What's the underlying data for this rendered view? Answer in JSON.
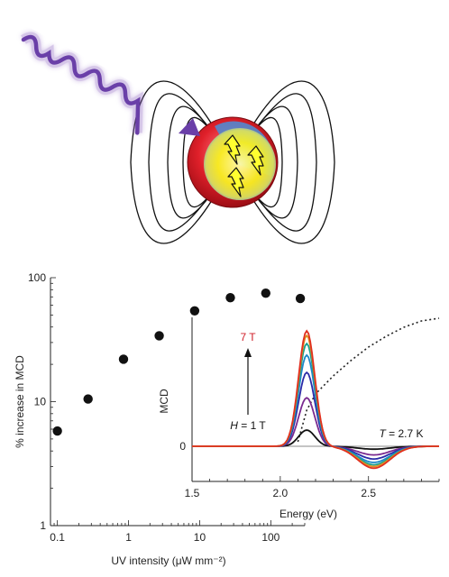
{
  "illustration": {
    "description_icons": [
      "uv-wave-icon",
      "magnetic-field-lines-icon",
      "nanocrystal-sphere-icon",
      "spin-arrow-icon"
    ]
  },
  "chart_data": [
    {
      "type": "scatter",
      "xlabel": "UV intensity (μW mm⁻²)",
      "ylabel": "% increase in MCD",
      "xscale": "log",
      "yscale": "log",
      "xlim": [
        0.08,
        300
      ],
      "ylim": [
        1,
        100
      ],
      "x_ticks": [
        0.1,
        1,
        10,
        100
      ],
      "x_tick_labels": [
        "0.1",
        "1",
        "10",
        "100"
      ],
      "y_ticks": [
        1,
        10,
        100
      ],
      "y_tick_labels": [
        "1",
        "10",
        "100"
      ],
      "x": [
        0.1,
        0.27,
        0.85,
        2.7,
        8.5,
        27,
        85,
        260
      ],
      "y": [
        5.8,
        10.5,
        22,
        34,
        54,
        69,
        75,
        68
      ],
      "color": "#111111"
    },
    {
      "type": "line",
      "xlabel": "Energy (eV)",
      "ylabel": "MCD",
      "xlim": [
        1.5,
        2.9
      ],
      "x_ticks": [
        1.5,
        2.0,
        2.5
      ],
      "x_tick_labels": [
        "1.5",
        "2.0",
        "2.5"
      ],
      "y_tick_labels": [
        "0"
      ],
      "annotations": {
        "top_field": "7 T",
        "bottom_field_var": "H",
        "bottom_field_value": " = 1 T",
        "temp_var": "T",
        "temp_value": " = 2.7 K"
      },
      "series": [
        {
          "field": 1,
          "color": "#111111",
          "peak": 0.14,
          "dip": -0.025
        },
        {
          "field": 2,
          "color": "#7a2a90",
          "peak": 0.42,
          "dip": -0.075
        },
        {
          "field": 3,
          "color": "#2b2ba8",
          "peak": 0.64,
          "dip": -0.11
        },
        {
          "field": 4,
          "color": "#1e88c8",
          "peak": 0.79,
          "dip": -0.14
        },
        {
          "field": 5,
          "color": "#18a08c",
          "peak": 0.89,
          "dip": -0.16
        },
        {
          "field": 6,
          "color": "#e09020",
          "peak": 0.96,
          "dip": -0.175
        },
        {
          "field": 7,
          "color": "#e03020",
          "peak": 1.0,
          "dip": -0.19
        }
      ],
      "dotted_absorption": {
        "color": "#222222",
        "x": [
          2.1,
          2.15,
          2.2,
          2.3,
          2.4,
          2.5,
          2.6,
          2.7,
          2.8,
          2.9
        ],
        "y": [
          0.05,
          0.4,
          0.58,
          0.78,
          0.95,
          1.1,
          1.22,
          1.32,
          1.39,
          1.42
        ]
      }
    }
  ]
}
